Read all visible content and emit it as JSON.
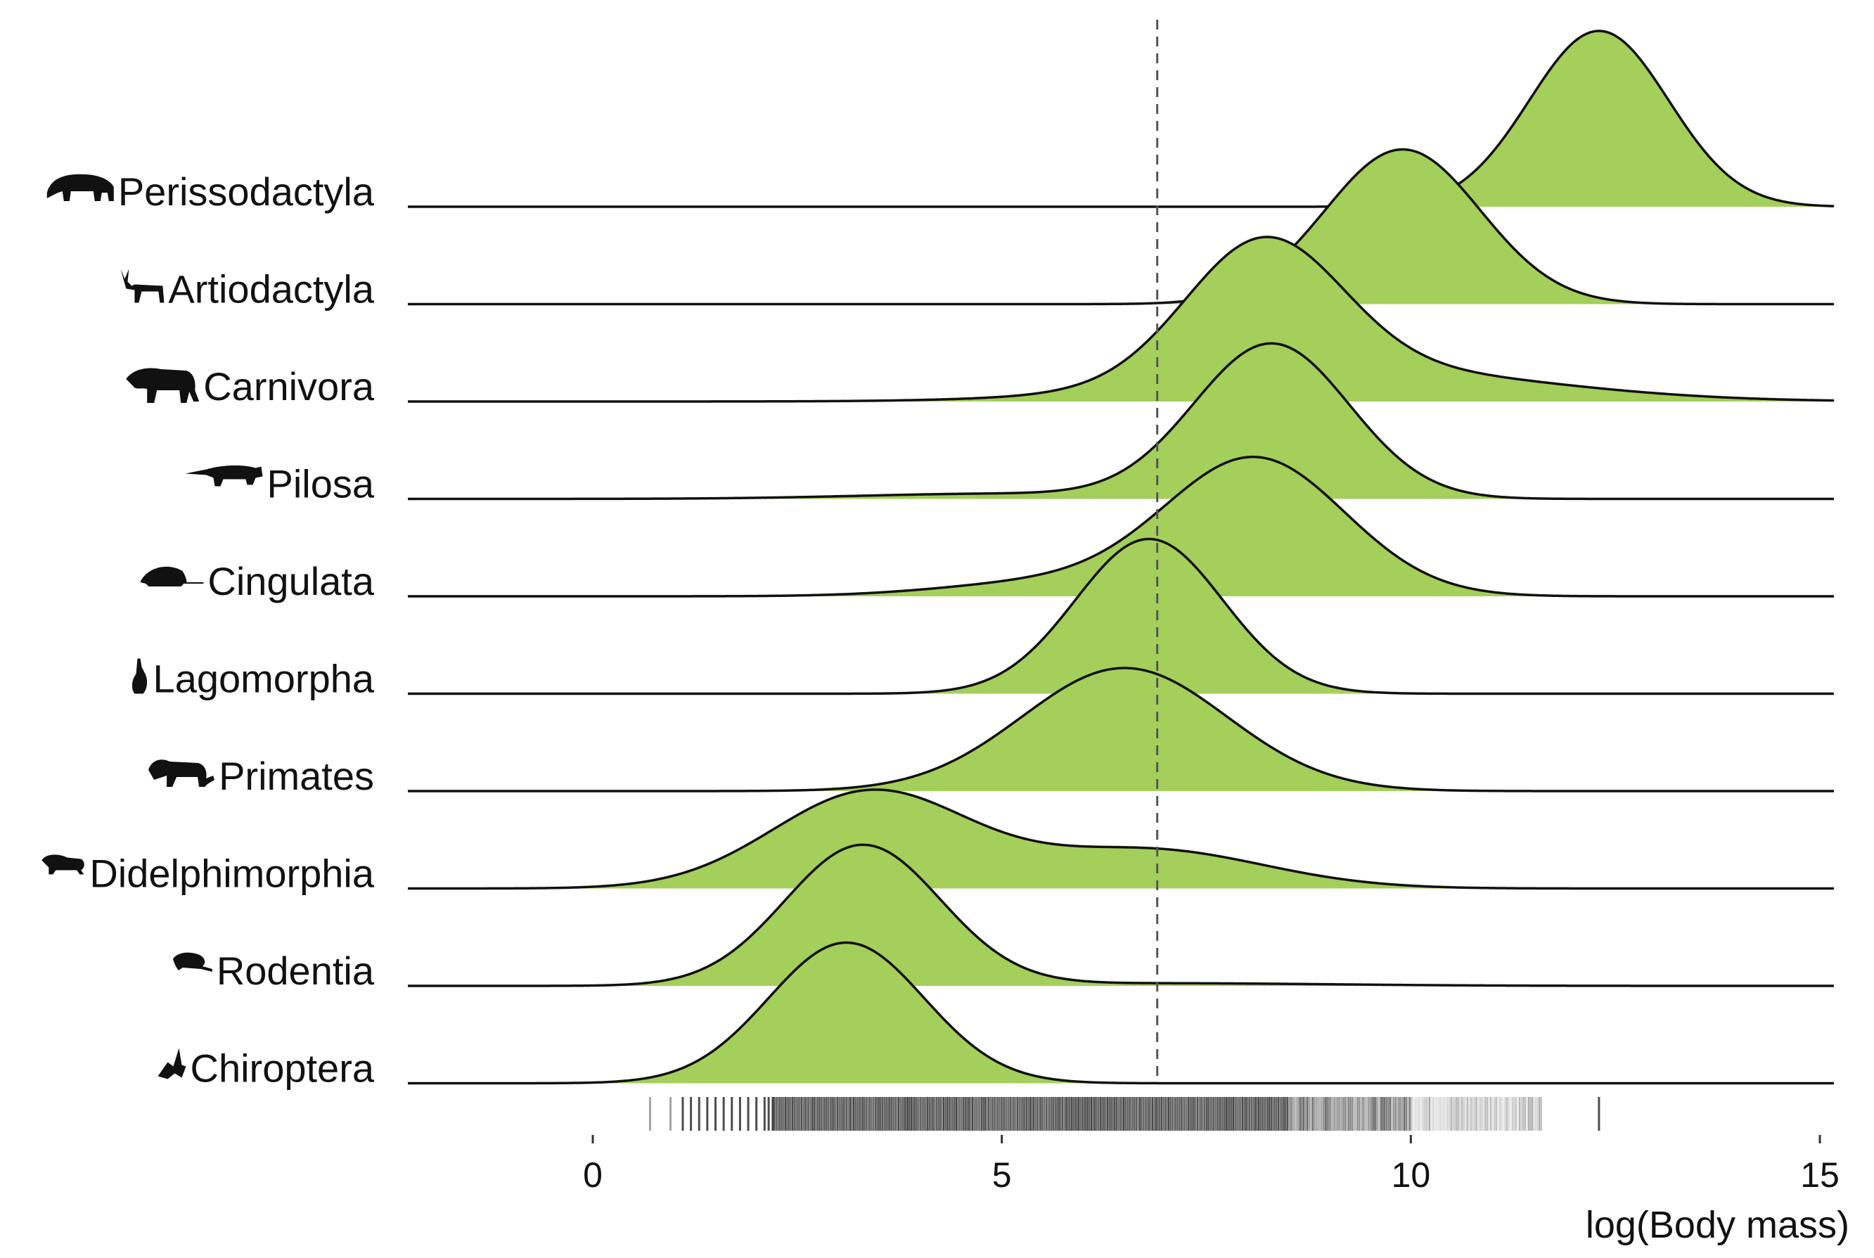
{
  "chart_data": {
    "type": "ridgeline density",
    "xlabel": "log(Body mass)",
    "xlim": [
      -2.2,
      15.2
    ],
    "xticks": [
      0,
      5,
      10,
      15
    ],
    "fill_color": "#a3cf5a",
    "line_color": "#111111",
    "reference_line": {
      "x": 6.9,
      "style": "dashed",
      "color": "#555555"
    },
    "series": [
      {
        "name": "Perissodactyla",
        "icon": "tapir-icon",
        "components": [
          {
            "mean": 12.3,
            "sd": 0.85,
            "peak": 1.0
          }
        ]
      },
      {
        "name": "Artiodactyla",
        "icon": "deer-icon",
        "components": [
          {
            "mean": 9.9,
            "sd": 0.95,
            "peak": 0.88
          }
        ]
      },
      {
        "name": "Carnivora",
        "icon": "big-cat-icon",
        "components": [
          {
            "mean": 8.2,
            "sd": 0.95,
            "peak": 0.78
          },
          {
            "mean": 9.4,
            "sd": 2.2,
            "peak": 0.18
          }
        ]
      },
      {
        "name": "Pilosa",
        "icon": "anteater-icon",
        "components": [
          {
            "mean": 8.3,
            "sd": 0.95,
            "peak": 0.88
          },
          {
            "mean": 5.0,
            "sd": 1.7,
            "peak": 0.03
          }
        ]
      },
      {
        "name": "Cingulata",
        "icon": "armadillo-icon",
        "components": [
          {
            "mean": 8.1,
            "sd": 1.1,
            "peak": 0.78
          },
          {
            "mean": 5.6,
            "sd": 1.3,
            "peak": 0.08
          }
        ]
      },
      {
        "name": "Lagomorpha",
        "icon": "rabbit-icon",
        "components": [
          {
            "mean": 6.8,
            "sd": 0.9,
            "peak": 0.88
          }
        ]
      },
      {
        "name": "Primates",
        "icon": "monkey-icon",
        "components": [
          {
            "mean": 6.5,
            "sd": 1.25,
            "peak": 0.7
          }
        ]
      },
      {
        "name": "Didelphimorphia",
        "icon": "opossum-icon",
        "components": [
          {
            "mean": 3.4,
            "sd": 1.2,
            "peak": 0.55
          },
          {
            "mean": 6.8,
            "sd": 1.4,
            "peak": 0.22
          }
        ]
      },
      {
        "name": "Rodentia",
        "icon": "rat-icon",
        "components": [
          {
            "mean": 3.3,
            "sd": 0.95,
            "peak": 0.8
          },
          {
            "mean": 7.0,
            "sd": 2.0,
            "peak": 0.015
          }
        ]
      },
      {
        "name": "Chiroptera",
        "icon": "bat-icon",
        "components": [
          {
            "mean": 3.1,
            "sd": 0.95,
            "peak": 0.8
          }
        ]
      }
    ],
    "rug": {
      "color": "#3a3a3a",
      "values": [
        0.7,
        0.95,
        1.1,
        1.2,
        1.3,
        1.4,
        1.5,
        1.6,
        1.7,
        1.8,
        1.9,
        2.0,
        2.1,
        2.15,
        2.2,
        12.3
      ],
      "dense_band": {
        "from": 2.2,
        "to": 11.6
      }
    }
  }
}
